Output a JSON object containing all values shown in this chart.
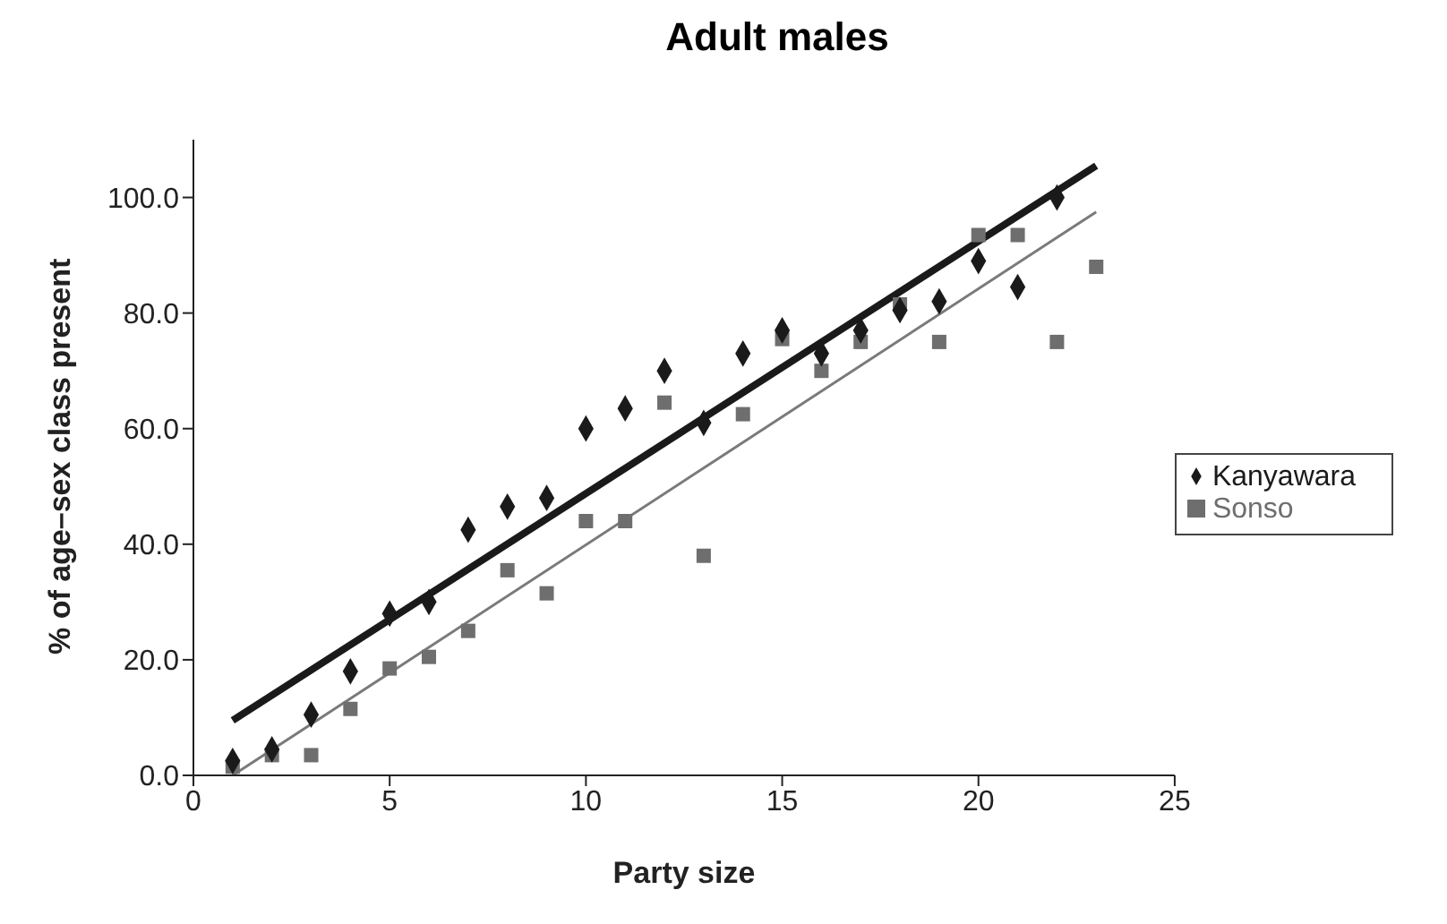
{
  "chart_data": {
    "type": "scatter",
    "title": "Adult males",
    "xlabel": "Party size",
    "ylabel": "% of age–sex class present",
    "xlim": [
      0,
      25
    ],
    "xticks": [
      0,
      5,
      10,
      15,
      20,
      25
    ],
    "ylim": [
      0,
      110
    ],
    "yticks": [
      {
        "value": 0,
        "label": "0.0"
      },
      {
        "value": 20,
        "label": "20.0"
      },
      {
        "value": 40,
        "label": "40.0"
      },
      {
        "value": 60,
        "label": "60.0"
      },
      {
        "value": 80,
        "label": "80.0"
      },
      {
        "value": 100,
        "label": "100.0"
      }
    ],
    "grid": false,
    "legend": "right",
    "series": [
      {
        "name": "Kanyawara",
        "marker": "diamond",
        "color": "#1a1a1a",
        "x": [
          1,
          2,
          3,
          4,
          5,
          6,
          7,
          8,
          9,
          10,
          11,
          12,
          13,
          14,
          15,
          16,
          17,
          18,
          19,
          20,
          21,
          22
        ],
        "values": [
          2.5,
          4.5,
          10.5,
          18,
          28,
          30,
          42.5,
          46.5,
          48,
          60,
          63.5,
          70,
          61,
          73,
          77,
          73,
          77,
          80.5,
          82,
          89,
          84.5,
          100
        ]
      },
      {
        "name": "Sonso",
        "marker": "square",
        "color": "#6e6e6e",
        "x": [
          1,
          2,
          3,
          4,
          5,
          6,
          7,
          8,
          9,
          10,
          11,
          12,
          13,
          14,
          15,
          16,
          17,
          18,
          19,
          20,
          21,
          22,
          23
        ],
        "values": [
          1.5,
          3.5,
          3.5,
          11.5,
          18.5,
          20.5,
          25,
          35.5,
          31.5,
          44,
          44,
          64.5,
          38,
          62.5,
          75.5,
          70,
          75,
          81.5,
          75,
          93.5,
          93.5,
          75,
          88
        ]
      },
      {
        "type": "line",
        "marker": "none",
        "line_style": "solid",
        "color": "#1a1a1a",
        "x": [
          1,
          23
        ],
        "values": [
          9.5,
          105.5
        ]
      },
      {
        "type": "line",
        "marker": "none",
        "line_style": "solid",
        "color": "#7a7a7a",
        "x": [
          1,
          23
        ],
        "values": [
          0,
          97.5
        ]
      }
    ]
  }
}
